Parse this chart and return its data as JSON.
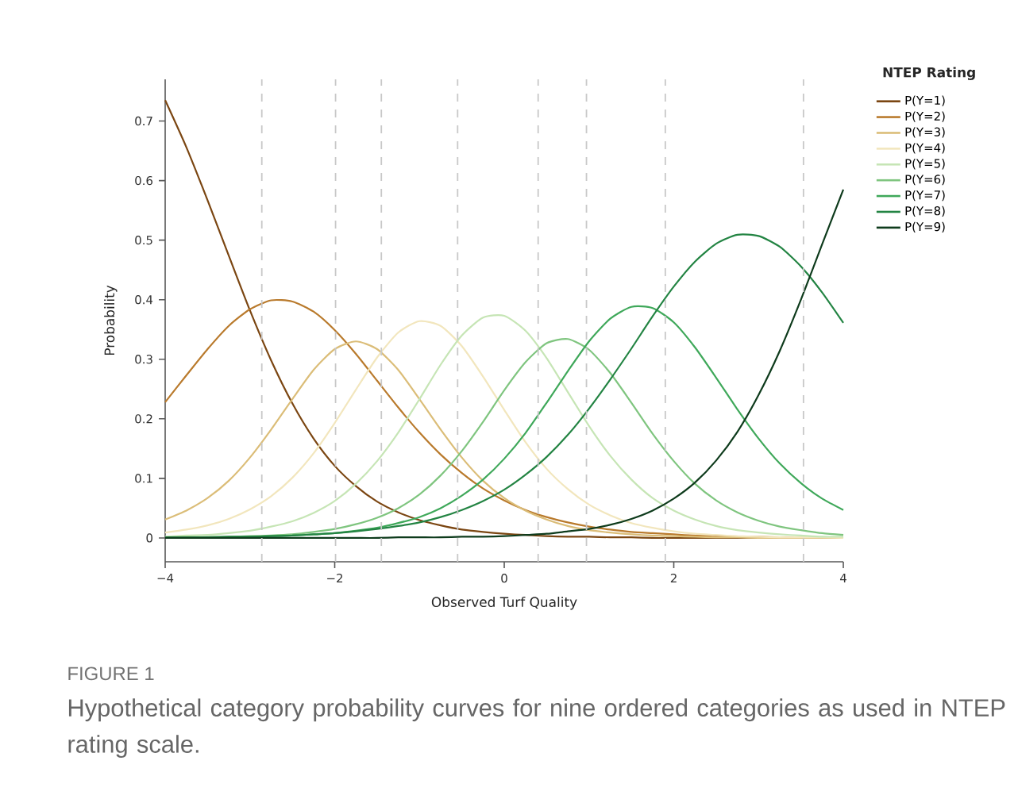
{
  "chart_data": {
    "type": "line",
    "xlabel": "Observed Turf Quality",
    "ylabel": "Probability",
    "legend_title": "NTEP Rating",
    "annotations": [
      "FIGURE 1",
      "Hypothetical category probability curves for nine ordered categories as used in NTEP rating scale."
    ],
    "x": [
      -4,
      -3.75,
      -3.5,
      -3.25,
      -3,
      -2.75,
      -2.5,
      -2.25,
      -2,
      -1.75,
      -1.5,
      -1.25,
      -1,
      -0.75,
      -0.5,
      -0.25,
      0,
      0.25,
      0.5,
      0.75,
      1,
      1.25,
      1.5,
      1.75,
      2,
      2.25,
      2.5,
      2.75,
      3,
      3.25,
      3.5,
      3.75,
      4
    ],
    "series": [
      {
        "name": "P(Y=1)",
        "color": "#7b4612",
        "values": [
          0.735,
          0.656,
          0.567,
          0.474,
          0.382,
          0.298,
          0.226,
          0.167,
          0.121,
          0.087,
          0.061,
          0.043,
          0.03,
          0.021,
          0.014,
          0.01,
          0.007,
          0.005,
          0.003,
          0.002,
          0.002,
          0.001,
          0.001,
          0,
          0,
          0,
          0,
          0,
          0,
          0,
          null,
          null,
          null
        ]
      },
      {
        "name": "P(Y=2)",
        "color": "#b97a2c",
        "values": [
          0.228,
          0.273,
          0.317,
          0.356,
          0.384,
          0.399,
          0.397,
          0.38,
          0.349,
          0.309,
          0.264,
          0.219,
          0.177,
          0.14,
          0.109,
          0.083,
          0.063,
          0.047,
          0.035,
          0.026,
          0.019,
          0.014,
          0.01,
          0.008,
          0.006,
          0.004,
          0.003,
          0.002,
          0.002,
          0.001,
          0.001,
          0.001,
          0
        ]
      },
      {
        "name": "P(Y=3)",
        "color": "#dbbd78",
        "values": [
          0.031,
          0.046,
          0.067,
          0.096,
          0.135,
          0.182,
          0.233,
          0.282,
          0.317,
          0.33,
          0.317,
          0.282,
          0.233,
          0.182,
          0.135,
          0.096,
          0.067,
          0.046,
          0.031,
          0.02,
          0.013,
          0.009,
          0.006,
          0.004,
          0.003,
          0.002,
          0.001,
          0.001,
          0,
          0,
          0,
          0,
          0
        ]
      },
      {
        "name": "P(Y=4)",
        "color": "#f2e6bd",
        "values": [
          0.009,
          0.014,
          0.021,
          0.032,
          0.048,
          0.07,
          0.101,
          0.142,
          0.193,
          0.249,
          0.303,
          0.345,
          0.364,
          0.356,
          0.322,
          0.271,
          0.215,
          0.161,
          0.116,
          0.082,
          0.056,
          0.038,
          0.025,
          0.017,
          0.011,
          0.007,
          0.005,
          0.003,
          0.002,
          0.001,
          0.001,
          0.001,
          0
        ]
      },
      {
        "name": "P(Y=5)",
        "color": "#c6e5b5",
        "values": [
          0.002,
          0.004,
          0.005,
          0.008,
          0.012,
          0.019,
          0.028,
          0.042,
          0.062,
          0.091,
          0.129,
          0.177,
          0.233,
          0.291,
          0.34,
          0.37,
          0.373,
          0.348,
          0.302,
          0.245,
          0.188,
          0.138,
          0.098,
          0.067,
          0.046,
          0.031,
          0.02,
          0.013,
          0.009,
          0.006,
          0.004,
          0.002,
          0.002
        ]
      },
      {
        "name": "P(Y=6)",
        "color": "#7fc57f",
        "values": [
          0.001,
          null,
          null,
          0.002,
          0.003,
          0.004,
          0.006,
          0.01,
          0.015,
          0.023,
          0.034,
          0.05,
          0.073,
          0.105,
          0.146,
          0.195,
          0.248,
          0.295,
          0.327,
          0.334,
          0.316,
          0.277,
          0.227,
          0.175,
          0.129,
          0.091,
          0.063,
          0.043,
          0.029,
          0.019,
          0.013,
          0.008,
          0.005
        ]
      },
      {
        "name": "P(Y=7)",
        "color": "#3fa85a",
        "values": [
          0,
          0.001,
          0.001,
          0.001,
          0.002,
          0.003,
          0.004,
          0.006,
          0.008,
          0.012,
          0.017,
          0.025,
          0.035,
          0.05,
          0.071,
          0.098,
          0.133,
          0.176,
          0.227,
          0.28,
          0.33,
          0.368,
          0.388,
          0.386,
          0.362,
          0.32,
          0.269,
          0.216,
          0.167,
          0.125,
          0.092,
          0.066,
          0.047
        ]
      },
      {
        "name": "P(Y=8)",
        "color": "#238443",
        "values": [
          0.001,
          0.001,
          0.001,
          0.002,
          0.002,
          0.003,
          0.004,
          0.006,
          0.008,
          0.011,
          0.015,
          0.02,
          0.026,
          0.035,
          0.047,
          0.062,
          0.081,
          0.106,
          0.136,
          0.173,
          0.217,
          0.266,
          0.318,
          0.372,
          0.422,
          0.464,
          0.494,
          0.509,
          0.507,
          0.489,
          0.456,
          0.412,
          0.361
        ]
      },
      {
        "name": "P(Y=9)",
        "color": "#0e3b1c",
        "values": [
          0,
          0,
          0,
          0,
          0,
          0,
          0,
          0,
          0,
          0,
          0,
          0.001,
          0.001,
          0.001,
          0.002,
          0.002,
          0.003,
          0.005,
          0.007,
          0.011,
          0.015,
          0.022,
          0.032,
          0.046,
          0.066,
          0.093,
          0.13,
          0.178,
          0.24,
          0.314,
          0.4,
          0.493,
          0.585
        ]
      }
    ],
    "xlim": [
      -4,
      4
    ],
    "xticks": [
      {
        "value": -4,
        "label": "−4"
      },
      {
        "value": -2,
        "label": "−2"
      },
      0,
      2,
      4
    ],
    "ylim": [
      -0.04,
      0.77
    ],
    "yticks": [
      0,
      0.1,
      0.2,
      0.3,
      0.4,
      0.5,
      0.6,
      0.7
    ],
    "ref_lines": [
      {
        "axis": "x",
        "value": -2.86,
        "color": "#c8c8c8",
        "line_style": "dashed"
      },
      {
        "axis": "x",
        "value": -1.99,
        "color": "#c8c8c8",
        "line_style": "dashed"
      },
      {
        "axis": "x",
        "value": -1.45,
        "color": "#c8c8c8",
        "line_style": "dashed"
      },
      {
        "axis": "x",
        "value": -0.55,
        "color": "#c8c8c8",
        "line_style": "dashed"
      },
      {
        "axis": "x",
        "value": 0.4,
        "color": "#c8c8c8",
        "line_style": "dashed"
      },
      {
        "axis": "x",
        "value": 0.97,
        "color": "#c8c8c8",
        "line_style": "dashed"
      },
      {
        "axis": "x",
        "value": 1.9,
        "color": "#c8c8c8",
        "line_style": "dashed"
      },
      {
        "axis": "x",
        "value": 3.53,
        "color": "#c8c8c8",
        "line_style": "dashed"
      }
    ],
    "legend": "top right",
    "marker": "none",
    "line_style": "solid",
    "grid": false
  }
}
